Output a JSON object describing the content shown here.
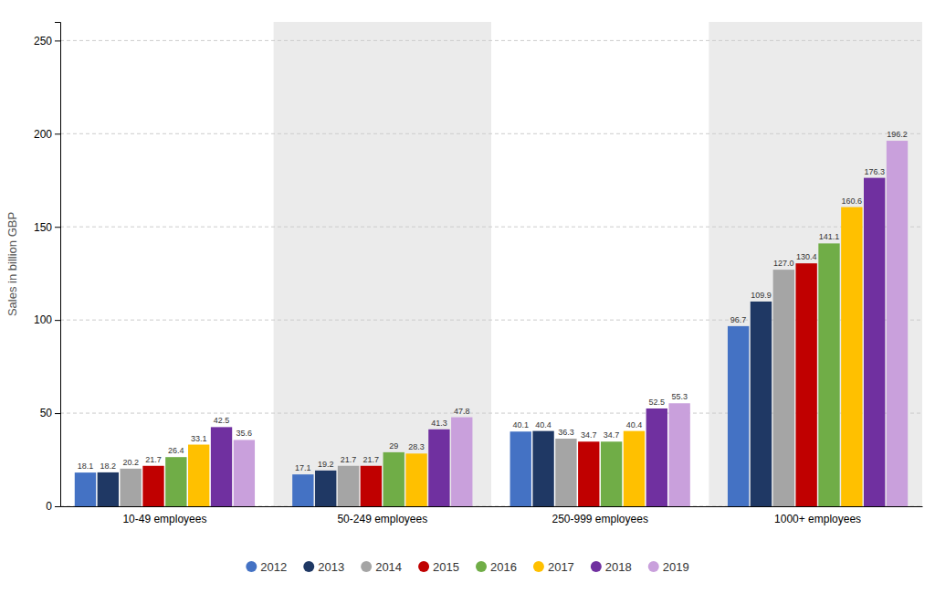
{
  "chart_data": {
    "type": "bar",
    "categories": [
      "10-49 employees",
      "50-249 employees",
      "250-999 employees",
      "1000+ employees"
    ],
    "series": [
      {
        "name": "2012",
        "color": "#4472C4",
        "values": [
          18.1,
          17.1,
          40.1,
          96.7
        ]
      },
      {
        "name": "2013",
        "color": "#1F3864",
        "values": [
          18.2,
          19.2,
          40.4,
          109.9
        ]
      },
      {
        "name": "2014",
        "color": "#A5A5A5",
        "values": [
          20.2,
          21.7,
          36.3,
          127.0
        ],
        "value_labels": [
          "20.2",
          "21.7",
          "36.3",
          "127.0"
        ]
      },
      {
        "name": "2015",
        "color": "#C00000",
        "values": [
          21.7,
          21.7,
          34.7,
          130.4
        ]
      },
      {
        "name": "2016",
        "color": "#70AD47",
        "values": [
          26.4,
          29.0,
          34.7,
          141.1
        ]
      },
      {
        "name": "2017",
        "color": "#FFC000",
        "values": [
          33.1,
          28.3,
          40.4,
          160.6
        ]
      },
      {
        "name": "2018",
        "color": "#7030A0",
        "values": [
          42.5,
          41.3,
          52.5,
          176.3
        ]
      },
      {
        "name": "2019",
        "color": "#C9A0DC",
        "values": [
          35.6,
          47.8,
          55.3,
          196.2
        ]
      }
    ],
    "ylabel": "Sales in billion GBP",
    "ylim": [
      0,
      260
    ],
    "yticks": [
      0,
      50,
      100,
      150,
      200,
      250
    ],
    "grid": true,
    "data_labels": true,
    "legend": "bottom"
  }
}
